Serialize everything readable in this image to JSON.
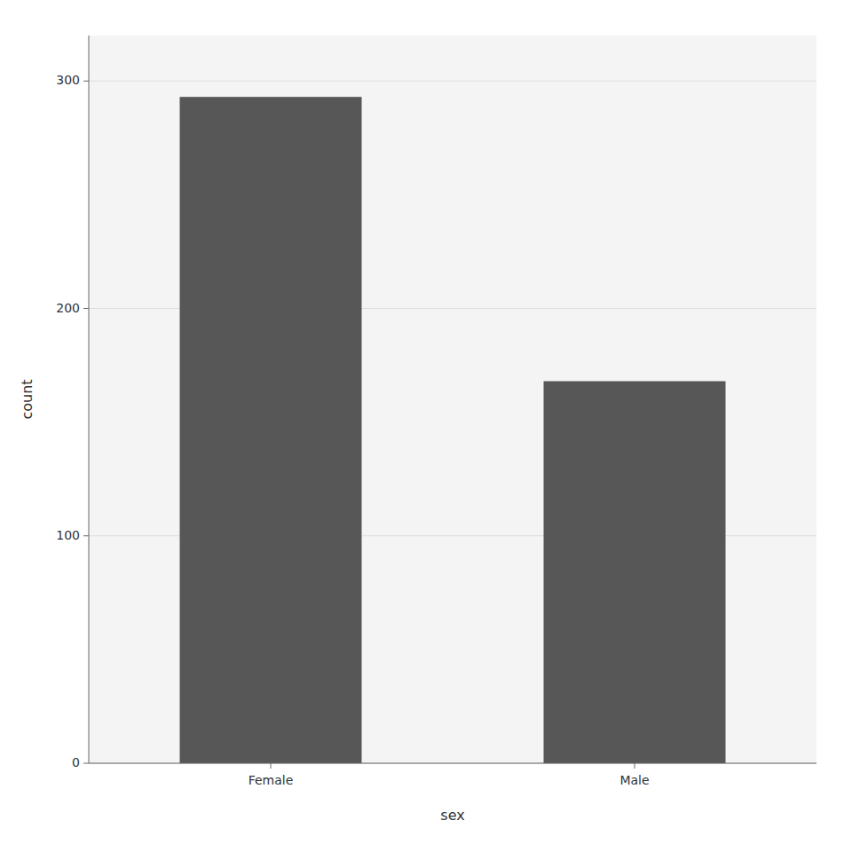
{
  "chart_data": {
    "type": "bar",
    "categories": [
      "Female",
      "Male"
    ],
    "values": [
      293,
      168
    ],
    "color": "#575757",
    "xlabel": "sex",
    "ylabel": "count",
    "ylim": [
      0,
      320
    ],
    "yticks": [
      0,
      100,
      200,
      300
    ],
    "grid": true
  }
}
